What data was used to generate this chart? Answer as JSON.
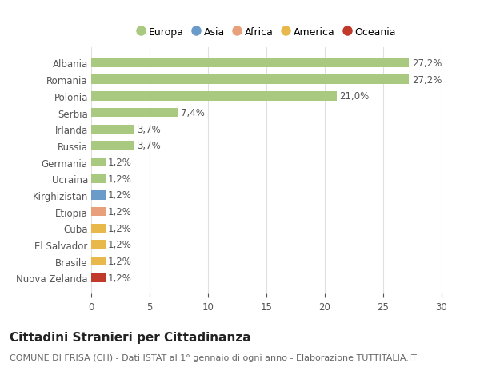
{
  "categories": [
    "Nuova Zelanda",
    "Brasile",
    "El Salvador",
    "Cuba",
    "Etiopia",
    "Kirghizistan",
    "Ucraina",
    "Germania",
    "Russia",
    "Irlanda",
    "Serbia",
    "Polonia",
    "Romania",
    "Albania"
  ],
  "values": [
    1.2,
    1.2,
    1.2,
    1.2,
    1.2,
    1.2,
    1.2,
    1.2,
    3.7,
    3.7,
    7.4,
    21.0,
    27.2,
    27.2
  ],
  "bar_colors": [
    "#c0392b",
    "#e8b84b",
    "#e8b84b",
    "#e8b84b",
    "#e8a07c",
    "#6b9bc8",
    "#a8c97f",
    "#a8c97f",
    "#a8c97f",
    "#a8c97f",
    "#a8c97f",
    "#a8c97f",
    "#a8c97f",
    "#a8c97f"
  ],
  "labels": [
    "1,2%",
    "1,2%",
    "1,2%",
    "1,2%",
    "1,2%",
    "1,2%",
    "1,2%",
    "1,2%",
    "3,7%",
    "3,7%",
    "7,4%",
    "21,0%",
    "27,2%",
    "27,2%"
  ],
  "legend": [
    {
      "label": "Europa",
      "color": "#a8c97f"
    },
    {
      "label": "Asia",
      "color": "#6b9bc8"
    },
    {
      "label": "Africa",
      "color": "#e8a07c"
    },
    {
      "label": "America",
      "color": "#e8b84b"
    },
    {
      "label": "Oceania",
      "color": "#c0392b"
    }
  ],
  "xlim": [
    0,
    30
  ],
  "xticks": [
    0,
    5,
    10,
    15,
    20,
    25,
    30
  ],
  "title": "Cittadini Stranieri per Cittadinanza",
  "subtitle": "COMUNE DI FRISA (CH) - Dati ISTAT al 1° gennaio di ogni anno - Elaborazione TUTTITALIA.IT",
  "background_color": "#ffffff",
  "grid_color": "#e0e0e0",
  "bar_height": 0.55,
  "label_fontsize": 8.5,
  "tick_fontsize": 8.5,
  "title_fontsize": 11,
  "subtitle_fontsize": 8,
  "legend_fontsize": 9
}
